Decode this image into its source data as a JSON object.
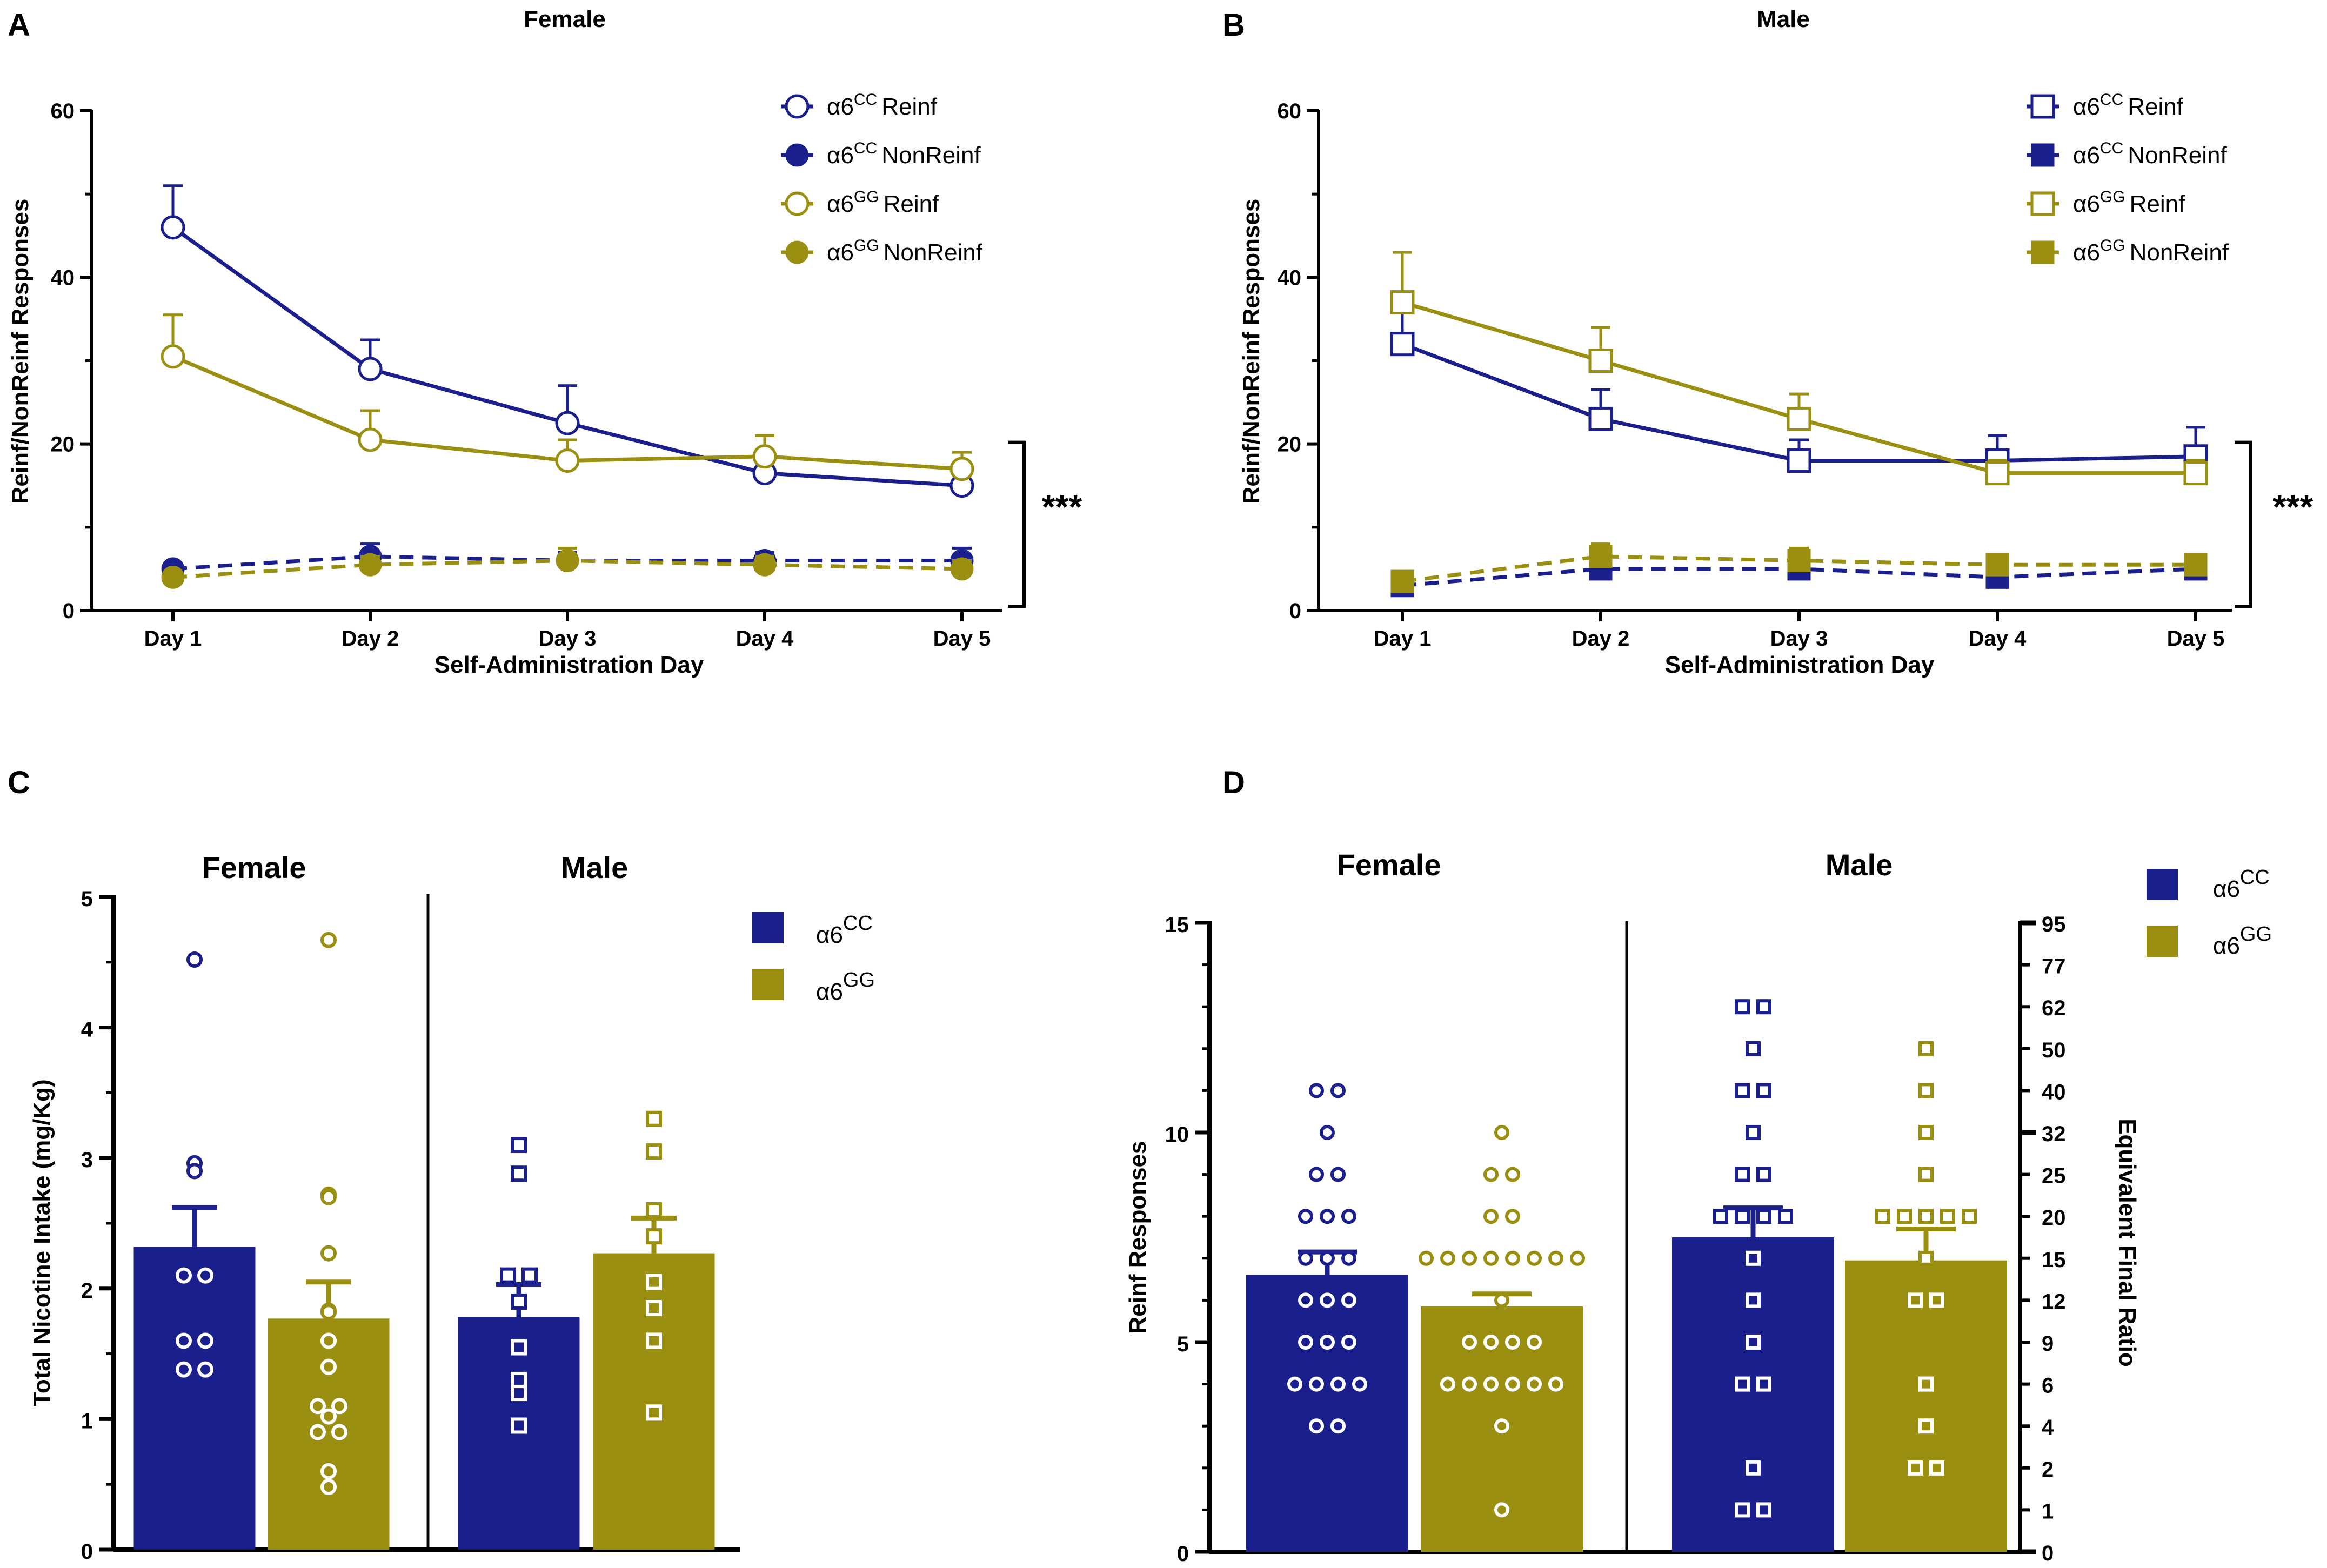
{
  "colors": {
    "cc": "#1a1f8c",
    "gg": "#9a8f10",
    "axis": "#000000"
  },
  "chart_data": [
    {
      "panel": "A",
      "type": "line",
      "title": "Female",
      "xlabel": "Self-Administration Day",
      "ylabel": "Reinf/NonReinf Responses",
      "categories": [
        "Day 1",
        "Day 2",
        "Day 3",
        "Day 4",
        "Day 5"
      ],
      "ylim": [
        0,
        60
      ],
      "yticks": [
        "0",
        "20",
        "40",
        "60"
      ],
      "significance": "***",
      "series": [
        {
          "name": "Reinf",
          "genotype": "CC",
          "color_key": "cc",
          "marker": "circle",
          "filled": false,
          "dashed": false,
          "values": [
            46,
            29,
            22.5,
            16.5,
            15
          ],
          "errors": [
            5,
            3.5,
            4.5,
            2,
            2.5
          ]
        },
        {
          "name": "NonReinf",
          "genotype": "CC",
          "color_key": "cc",
          "marker": "circle",
          "filled": true,
          "dashed": true,
          "values": [
            5,
            6.5,
            6,
            6,
            6
          ],
          "errors": [
            0.5,
            1.5,
            1,
            1,
            1.5
          ]
        },
        {
          "name": "Reinf",
          "genotype": "GG",
          "color_key": "gg",
          "marker": "circle",
          "filled": false,
          "dashed": false,
          "values": [
            30.5,
            20.5,
            18,
            18.5,
            17
          ],
          "errors": [
            5,
            3.5,
            2.5,
            2.5,
            2
          ]
        },
        {
          "name": "NonReinf",
          "genotype": "GG",
          "color_key": "gg",
          "marker": "circle",
          "filled": true,
          "dashed": true,
          "values": [
            4,
            5.5,
            6,
            5.5,
            5
          ],
          "errors": [
            0.5,
            1,
            1.5,
            1,
            1
          ]
        }
      ]
    },
    {
      "panel": "B",
      "type": "line",
      "title": "Male",
      "xlabel": "Self-Administration Day",
      "ylabel": "Reinf/NonReinf Responses",
      "categories": [
        "Day 1",
        "Day 2",
        "Day 3",
        "Day 4",
        "Day 5"
      ],
      "ylim": [
        0,
        60
      ],
      "yticks": [
        "0",
        "20",
        "40",
        "60"
      ],
      "significance": "***",
      "series": [
        {
          "name": "Reinf",
          "genotype": "CC",
          "color_key": "cc",
          "marker": "square",
          "filled": false,
          "dashed": false,
          "values": [
            32,
            23,
            18,
            18,
            18.5
          ],
          "errors": [
            4,
            3.5,
            2.5,
            3,
            3.5
          ]
        },
        {
          "name": "NonReinf",
          "genotype": "CC",
          "color_key": "cc",
          "marker": "square",
          "filled": true,
          "dashed": true,
          "values": [
            3,
            5,
            5,
            4,
            5
          ],
          "errors": [
            0.5,
            1,
            1,
            1,
            0.5
          ]
        },
        {
          "name": "Reinf",
          "genotype": "GG",
          "color_key": "gg",
          "marker": "square",
          "filled": false,
          "dashed": false,
          "values": [
            37,
            30,
            23,
            16.5,
            16.5
          ],
          "errors": [
            6,
            4,
            3,
            1.5,
            1.5
          ]
        },
        {
          "name": "NonReinf",
          "genotype": "GG",
          "color_key": "gg",
          "marker": "square",
          "filled": true,
          "dashed": true,
          "values": [
            3.5,
            6.5,
            6,
            5.5,
            5.5
          ],
          "errors": [
            0.5,
            1.5,
            1.5,
            1,
            0.5
          ]
        }
      ]
    },
    {
      "panel": "C",
      "type": "bar",
      "ylabel": "Total Nicotine Intake (mg/Kg)",
      "ylim": [
        0,
        5
      ],
      "yticks": [
        "0",
        "1",
        "2",
        "3",
        "4",
        "5"
      ],
      "groups": [
        "Female",
        "Male"
      ],
      "series": [
        {
          "name": "CC",
          "color_key": "cc"
        },
        {
          "name": "GG",
          "color_key": "gg"
        }
      ],
      "bars": [
        {
          "group": "Female",
          "series": "CC",
          "marker": "circle",
          "value": 2.32,
          "error": 0.3,
          "points": [
            4.52,
            2.96,
            2.9,
            2.1,
            2.1,
            1.6,
            1.6,
            1.38,
            1.38
          ]
        },
        {
          "group": "Female",
          "series": "GG",
          "marker": "circle",
          "value": 1.77,
          "error": 0.28,
          "points": [
            4.67,
            2.72,
            2.7,
            2.27,
            1.83,
            1.82,
            1.6,
            1.4,
            1.1,
            1.1,
            1.02,
            0.9,
            0.9,
            0.6,
            0.48
          ]
        },
        {
          "group": "Male",
          "series": "CC",
          "marker": "square",
          "value": 1.78,
          "error": 0.25,
          "points": [
            3.1,
            2.88,
            2.1,
            2.1,
            1.9,
            1.55,
            1.3,
            1.2,
            0.95
          ]
        },
        {
          "group": "Male",
          "series": "GG",
          "marker": "square",
          "value": 2.27,
          "error": 0.27,
          "points": [
            3.3,
            3.05,
            2.6,
            2.4,
            2.05,
            1.85,
            1.6,
            1.05
          ]
        }
      ]
    },
    {
      "panel": "D",
      "type": "bar",
      "ylabel": "Reinf Responses",
      "ylabel_right": "Equivalent Final Ratio",
      "ylim": [
        0,
        15
      ],
      "yticks": [
        "0",
        "5",
        "10",
        "15"
      ],
      "right_ticks": [
        "0",
        "1",
        "2",
        "4",
        "6",
        "9",
        "12",
        "15",
        "20",
        "25",
        "32",
        "40",
        "50",
        "62",
        "77",
        "95"
      ],
      "groups": [
        "Female",
        "Male"
      ],
      "series": [
        {
          "name": "CC",
          "color_key": "cc"
        },
        {
          "name": "GG",
          "color_key": "gg"
        }
      ],
      "bars": [
        {
          "group": "Female",
          "series": "CC",
          "marker": "circle",
          "value": 6.6,
          "error": 0.55,
          "points": [
            11,
            11,
            10,
            9,
            9,
            8,
            8,
            8,
            7,
            7,
            7,
            6,
            6,
            6,
            5,
            5,
            5,
            4,
            4,
            4,
            4,
            3,
            3
          ]
        },
        {
          "group": "Female",
          "series": "GG",
          "marker": "circle",
          "value": 5.85,
          "error": 0.3,
          "points": [
            10,
            9,
            9,
            8,
            8,
            7,
            7,
            7,
            7,
            7,
            7,
            7,
            7,
            6,
            5,
            5,
            5,
            5,
            4,
            4,
            4,
            4,
            4,
            4,
            3,
            1
          ]
        },
        {
          "group": "Male",
          "series": "CC",
          "marker": "square",
          "value": 7.5,
          "error": 0.7,
          "points": [
            13,
            13,
            12,
            11,
            11,
            10,
            9,
            9,
            8,
            8,
            8,
            8,
            7,
            6,
            5,
            4,
            4,
            2,
            1,
            1
          ]
        },
        {
          "group": "Male",
          "series": "GG",
          "marker": "square",
          "value": 6.95,
          "error": 0.75,
          "points": [
            12,
            11,
            10,
            9,
            8,
            8,
            8,
            8,
            8,
            7,
            6,
            6,
            4,
            3,
            2,
            2
          ]
        }
      ]
    }
  ],
  "panels": {
    "A": {
      "letter": "A",
      "legend": [
        {
          "base": "α6",
          "sup": "CC",
          "label": "Reinf"
        },
        {
          "base": "α6",
          "sup": "CC",
          "label": "NonReinf"
        },
        {
          "base": "α6",
          "sup": "GG",
          "label": "Reinf"
        },
        {
          "base": "α6",
          "sup": "GG",
          "label": "NonReinf"
        }
      ]
    },
    "B": {
      "letter": "B",
      "legend": [
        {
          "base": "α6",
          "sup": "CC",
          "label": "Reinf"
        },
        {
          "base": "α6",
          "sup": "CC",
          "label": "NonReinf"
        },
        {
          "base": "α6",
          "sup": "GG",
          "label": "Reinf"
        },
        {
          "base": "α6",
          "sup": "GG",
          "label": "NonReinf"
        }
      ]
    },
    "C": {
      "letter": "C",
      "legend": [
        {
          "base": "α6",
          "sup": "CC"
        },
        {
          "base": "α6",
          "sup": "GG"
        }
      ]
    },
    "D": {
      "letter": "D",
      "legend": [
        {
          "base": "α6",
          "sup": "CC"
        },
        {
          "base": "α6",
          "sup": "GG"
        }
      ]
    }
  }
}
